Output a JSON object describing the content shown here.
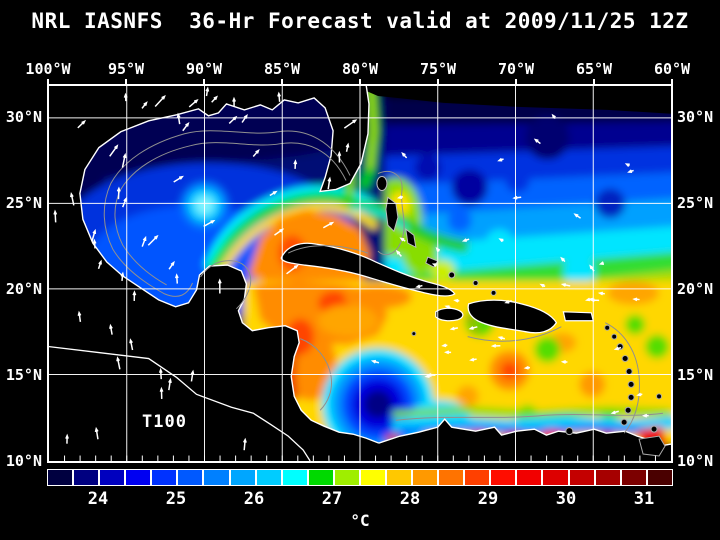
{
  "title": "NRL IASNFS  36-Hr Forecast valid at 2009/11/25 12Z",
  "map": {
    "variable_label": "T100",
    "lon_ticks": [
      "100°W",
      "95°W",
      "90°W",
      "85°W",
      "80°W",
      "75°W",
      "70°W",
      "65°W",
      "60°W"
    ],
    "lat_ticks": [
      "30°N",
      "25°N",
      "20°N",
      "15°N",
      "10°N"
    ]
  },
  "colorbar": {
    "unit": "°C",
    "tick_labels": [
      "24",
      "25",
      "26",
      "27",
      "28",
      "29",
      "30",
      "31"
    ],
    "segment_colors": [
      "#000040",
      "#000080",
      "#0000BF",
      "#0000F2",
      "#0032FF",
      "#0059FF",
      "#0080FF",
      "#00A6FF",
      "#00CCFF",
      "#00FFFF",
      "#00D900",
      "#9FEE00",
      "#FFFF00",
      "#FFC800",
      "#FF9900",
      "#FF7300",
      "#FF4000",
      "#FF0D00",
      "#F20000",
      "#DD0000",
      "#C40000",
      "#A60000",
      "#7C0000",
      "#4A0000"
    ]
  },
  "colors": {
    "background": "#000000",
    "land": "#000000",
    "coastline": "#FFFFFF",
    "bathymetry_contour": "#909090",
    "grid": "#FFFFFF",
    "text": "#FFFFFF",
    "vector_arrows": "#FFFFFF"
  }
}
